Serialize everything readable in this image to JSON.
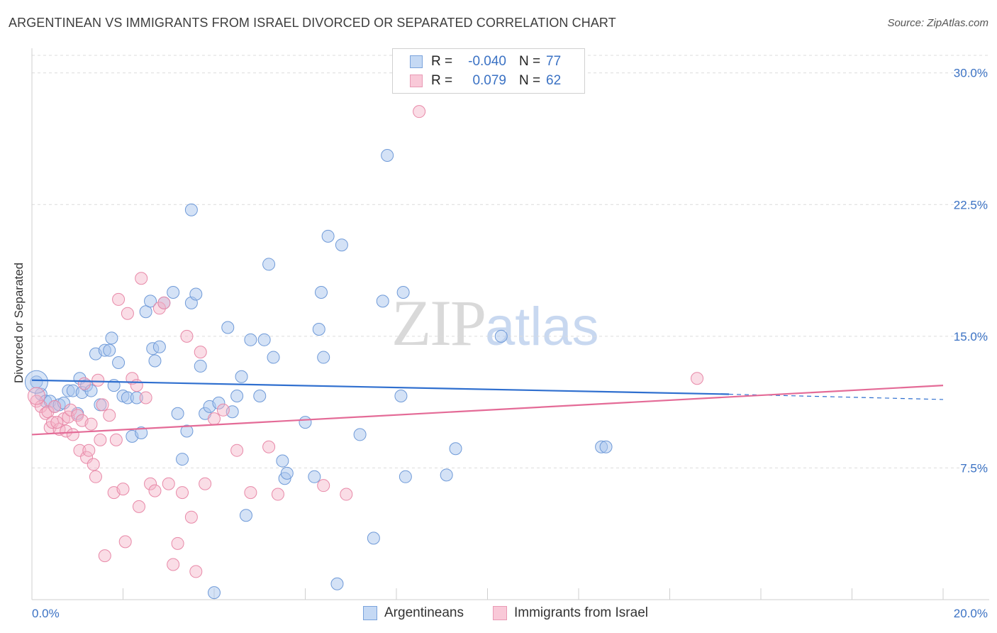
{
  "header": {
    "title": "ARGENTINEAN VS IMMIGRANTS FROM ISRAEL DIVORCED OR SEPARATED CORRELATION CHART",
    "source": "Source: ZipAtlas.com"
  },
  "watermark": {
    "zip": "ZIP",
    "atlas": "atlas"
  },
  "legend": {
    "rows": [
      {
        "r_label": "R =",
        "r_value": "-0.040",
        "n_label": "N =",
        "n_value": "77"
      },
      {
        "r_label": "R =",
        "r_value": "0.079",
        "n_label": "N =",
        "n_value": "62"
      }
    ]
  },
  "bottom_legend": {
    "series1": "Argentineans",
    "series2": "Immigrants from Israel"
  },
  "colors": {
    "blue_fill": "#a9c6ee",
    "blue_stroke": "#6f9ad8",
    "blue_line": "#2f6fcf",
    "pink_fill": "#f5b3c8",
    "pink_stroke": "#e889a8",
    "pink_line": "#e46b97",
    "grid": "#dcdcdc",
    "tick_text": "#3b72c4"
  },
  "chart_data": {
    "type": "scatter",
    "title": "ARGENTINEAN VS IMMIGRANTS FROM ISRAEL DIVORCED OR SEPARATED CORRELATION CHART",
    "xlabel": "",
    "ylabel": "Divorced or Separated",
    "xlim": [
      0,
      20
    ],
    "ylim": [
      0,
      31
    ],
    "x_tick_labels": [
      "0.0%",
      "20.0%"
    ],
    "y_ticks": [
      7.5,
      15.0,
      22.5,
      30.0
    ],
    "y_tick_labels": [
      "7.5%",
      "15.0%",
      "22.5%",
      "30.0%"
    ],
    "grid": true,
    "legend_position": "top-center",
    "series": [
      {
        "name": "Argentineans",
        "color": "#a9c6ee",
        "trend": {
          "x": [
            0,
            15.3
          ],
          "y": [
            12.5,
            11.7
          ],
          "dashed_to": [
            20,
            11.4
          ]
        },
        "points": [
          [
            0.1,
            12.4
          ],
          [
            0.2,
            11.7
          ],
          [
            0.3,
            11.3
          ],
          [
            0.4,
            11.3
          ],
          [
            0.5,
            11.0
          ],
          [
            0.6,
            11.1
          ],
          [
            0.7,
            11.2
          ],
          [
            0.8,
            11.9
          ],
          [
            0.9,
            11.9
          ],
          [
            1.0,
            10.6
          ],
          [
            1.05,
            12.6
          ],
          [
            1.1,
            11.8
          ],
          [
            1.2,
            12.2
          ],
          [
            1.3,
            11.9
          ],
          [
            1.4,
            14.0
          ],
          [
            1.5,
            11.1
          ],
          [
            1.6,
            14.2
          ],
          [
            1.7,
            14.2
          ],
          [
            1.75,
            14.9
          ],
          [
            1.8,
            12.2
          ],
          [
            1.9,
            13.5
          ],
          [
            2.0,
            11.6
          ],
          [
            2.1,
            11.5
          ],
          [
            2.2,
            9.3
          ],
          [
            2.3,
            11.5
          ],
          [
            2.4,
            9.5
          ],
          [
            2.5,
            16.4
          ],
          [
            2.6,
            17.0
          ],
          [
            2.65,
            14.3
          ],
          [
            2.7,
            13.6
          ],
          [
            2.8,
            14.4
          ],
          [
            2.9,
            16.9
          ],
          [
            3.1,
            17.5
          ],
          [
            3.2,
            10.6
          ],
          [
            3.3,
            8.0
          ],
          [
            3.4,
            9.6
          ],
          [
            3.5,
            16.9
          ],
          [
            3.6,
            17.4
          ],
          [
            3.7,
            13.3
          ],
          [
            3.8,
            10.6
          ],
          [
            3.9,
            11.0
          ],
          [
            4.1,
            11.2
          ],
          [
            4.3,
            15.5
          ],
          [
            4.4,
            10.7
          ],
          [
            4.5,
            11.6
          ],
          [
            4.6,
            12.7
          ],
          [
            4.7,
            4.8
          ],
          [
            4.8,
            14.8
          ],
          [
            5.1,
            14.8
          ],
          [
            5.2,
            19.1
          ],
          [
            5.3,
            13.8
          ],
          [
            5.5,
            7.9
          ],
          [
            5.55,
            6.9
          ],
          [
            5.6,
            7.2
          ],
          [
            6.0,
            10.1
          ],
          [
            6.2,
            7.0
          ],
          [
            6.3,
            15.4
          ],
          [
            6.35,
            17.5
          ],
          [
            6.4,
            13.8
          ],
          [
            6.5,
            20.7
          ],
          [
            6.7,
            0.9
          ],
          [
            6.8,
            20.2
          ],
          [
            7.2,
            9.4
          ],
          [
            7.5,
            3.5
          ],
          [
            7.7,
            17.0
          ],
          [
            7.8,
            25.3
          ],
          [
            8.1,
            11.6
          ],
          [
            8.15,
            17.5
          ],
          [
            8.2,
            7.0
          ],
          [
            9.1,
            7.1
          ],
          [
            9.3,
            8.6
          ],
          [
            10.3,
            15.0
          ],
          [
            12.5,
            8.7
          ],
          [
            12.6,
            8.7
          ],
          [
            4.0,
            0.4
          ],
          [
            3.5,
            22.2
          ],
          [
            5.0,
            11.6
          ]
        ]
      },
      {
        "name": "Immigrants from Israel",
        "color": "#f5b3c8",
        "trend": {
          "x": [
            0,
            20
          ],
          "y": [
            9.4,
            12.2
          ]
        },
        "points": [
          [
            0.1,
            11.3
          ],
          [
            0.2,
            11.0
          ],
          [
            0.3,
            10.6
          ],
          [
            0.35,
            10.7
          ],
          [
            0.4,
            9.8
          ],
          [
            0.45,
            10.1
          ],
          [
            0.5,
            11.0
          ],
          [
            0.6,
            9.7
          ],
          [
            0.7,
            10.3
          ],
          [
            0.75,
            9.6
          ],
          [
            0.8,
            10.4
          ],
          [
            0.85,
            10.8
          ],
          [
            0.9,
            9.4
          ],
          [
            1.0,
            10.5
          ],
          [
            1.05,
            8.5
          ],
          [
            1.1,
            10.2
          ],
          [
            1.2,
            8.1
          ],
          [
            1.25,
            8.5
          ],
          [
            1.3,
            10.0
          ],
          [
            1.35,
            7.7
          ],
          [
            1.4,
            7.0
          ],
          [
            1.5,
            9.1
          ],
          [
            1.55,
            11.1
          ],
          [
            1.6,
            2.5
          ],
          [
            1.7,
            10.5
          ],
          [
            1.8,
            6.1
          ],
          [
            1.85,
            9.1
          ],
          [
            1.9,
            17.1
          ],
          [
            2.0,
            6.3
          ],
          [
            2.05,
            3.3
          ],
          [
            2.1,
            16.3
          ],
          [
            2.2,
            12.6
          ],
          [
            2.3,
            12.2
          ],
          [
            2.35,
            5.3
          ],
          [
            2.4,
            18.3
          ],
          [
            2.5,
            11.5
          ],
          [
            2.6,
            6.6
          ],
          [
            2.7,
            6.2
          ],
          [
            2.8,
            16.6
          ],
          [
            2.9,
            16.9
          ],
          [
            3.0,
            6.6
          ],
          [
            3.1,
            2.0
          ],
          [
            3.2,
            3.2
          ],
          [
            3.3,
            6.1
          ],
          [
            3.4,
            15.0
          ],
          [
            3.5,
            4.7
          ],
          [
            3.6,
            1.6
          ],
          [
            3.7,
            14.1
          ],
          [
            3.8,
            6.6
          ],
          [
            4.0,
            10.3
          ],
          [
            4.2,
            10.8
          ],
          [
            4.5,
            8.5
          ],
          [
            4.8,
            6.1
          ],
          [
            5.2,
            8.7
          ],
          [
            5.4,
            6.0
          ],
          [
            6.4,
            6.5
          ],
          [
            6.9,
            6.0
          ],
          [
            8.5,
            27.8
          ],
          [
            14.6,
            12.6
          ],
          [
            1.15,
            12.3
          ],
          [
            1.45,
            12.5
          ],
          [
            0.55,
            10.1
          ]
        ]
      }
    ]
  }
}
